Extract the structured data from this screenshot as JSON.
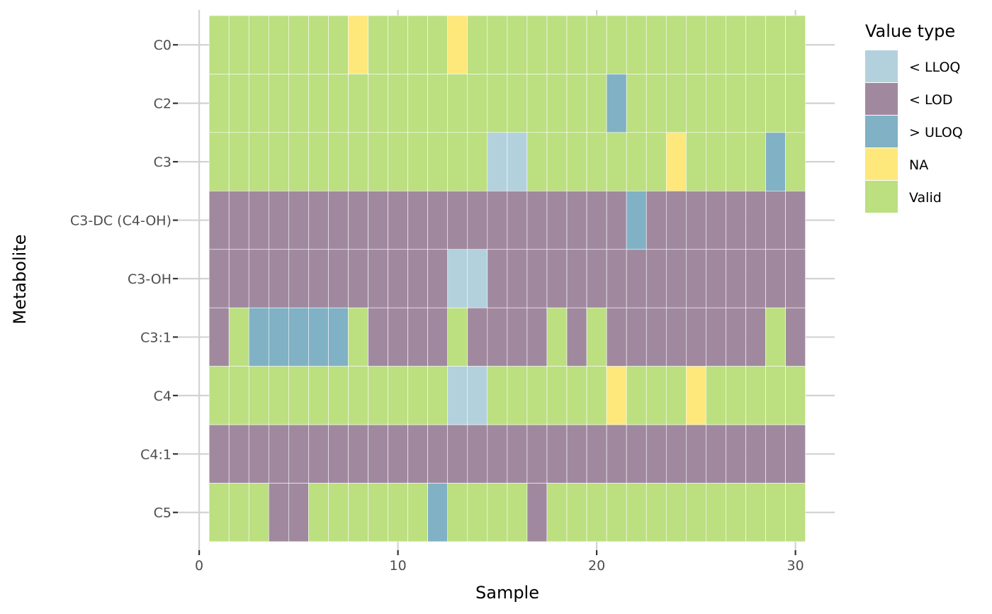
{
  "chart_data": {
    "type": "heatmap",
    "title": "",
    "xlabel": "Sample",
    "ylabel": "Metabolite",
    "xlim": [
      0,
      30.5
    ],
    "x_ticks": [
      "0",
      "10",
      "20",
      "30"
    ],
    "y_categories": [
      "C0",
      "C2",
      "C3",
      "C3-DC (C4-OH)",
      "C3-OH",
      "C3:1",
      "C4",
      "C4:1",
      "C5"
    ],
    "x_samples": [
      1,
      2,
      3,
      4,
      5,
      6,
      7,
      8,
      9,
      10,
      11,
      12,
      13,
      14,
      15,
      16,
      17,
      18,
      19,
      20,
      21,
      22,
      23,
      24,
      25,
      26,
      27,
      28,
      29,
      30
    ],
    "legend": {
      "title": "Value type",
      "placement": "right",
      "entries": [
        {
          "key": "lloq",
          "label": "< LLOQ",
          "color": "#b3d1dc"
        },
        {
          "key": "lod",
          "label": "< LOD",
          "color": "#a0899f"
        },
        {
          "key": "uloq",
          "label": "> ULOQ",
          "color": "#80b1c5"
        },
        {
          "key": "na",
          "label": "NA",
          "color": "#fee77b"
        },
        {
          "key": "valid",
          "label": "Valid",
          "color": "#bcdf80"
        }
      ]
    },
    "grid": true,
    "rows": [
      {
        "metabolite": "C0",
        "values": [
          "Valid",
          "Valid",
          "Valid",
          "Valid",
          "Valid",
          "Valid",
          "Valid",
          "NA",
          "Valid",
          "Valid",
          "Valid",
          "Valid",
          "NA",
          "Valid",
          "Valid",
          "Valid",
          "Valid",
          "Valid",
          "Valid",
          "Valid",
          "Valid",
          "Valid",
          "Valid",
          "Valid",
          "Valid",
          "Valid",
          "Valid",
          "Valid",
          "Valid",
          "Valid"
        ]
      },
      {
        "metabolite": "C2",
        "values": [
          "Valid",
          "Valid",
          "Valid",
          "Valid",
          "Valid",
          "Valid",
          "Valid",
          "Valid",
          "Valid",
          "Valid",
          "Valid",
          "Valid",
          "Valid",
          "Valid",
          "Valid",
          "Valid",
          "Valid",
          "Valid",
          "Valid",
          "Valid",
          "> ULOQ",
          "Valid",
          "Valid",
          "Valid",
          "Valid",
          "Valid",
          "Valid",
          "Valid",
          "Valid",
          "Valid"
        ]
      },
      {
        "metabolite": "C3",
        "values": [
          "Valid",
          "Valid",
          "Valid",
          "Valid",
          "Valid",
          "Valid",
          "Valid",
          "Valid",
          "Valid",
          "Valid",
          "Valid",
          "Valid",
          "Valid",
          "Valid",
          "< LLOQ",
          "< LLOQ",
          "Valid",
          "Valid",
          "Valid",
          "Valid",
          "Valid",
          "Valid",
          "Valid",
          "NA",
          "Valid",
          "Valid",
          "Valid",
          "Valid",
          "> ULOQ",
          "Valid"
        ]
      },
      {
        "metabolite": "C3-DC (C4-OH)",
        "values": [
          "< LOD",
          "< LOD",
          "< LOD",
          "< LOD",
          "< LOD",
          "< LOD",
          "< LOD",
          "< LOD",
          "< LOD",
          "< LOD",
          "< LOD",
          "< LOD",
          "< LOD",
          "< LOD",
          "< LOD",
          "< LOD",
          "< LOD",
          "< LOD",
          "< LOD",
          "< LOD",
          "< LOD",
          "> ULOQ",
          "< LOD",
          "< LOD",
          "< LOD",
          "< LOD",
          "< LOD",
          "< LOD",
          "< LOD",
          "< LOD"
        ]
      },
      {
        "metabolite": "C3-OH",
        "values": [
          "< LOD",
          "< LOD",
          "< LOD",
          "< LOD",
          "< LOD",
          "< LOD",
          "< LOD",
          "< LOD",
          "< LOD",
          "< LOD",
          "< LOD",
          "< LOD",
          "< LLOQ",
          "< LLOQ",
          "< LOD",
          "< LOD",
          "< LOD",
          "< LOD",
          "< LOD",
          "< LOD",
          "< LOD",
          "< LOD",
          "< LOD",
          "< LOD",
          "< LOD",
          "< LOD",
          "< LOD",
          "< LOD",
          "< LOD",
          "< LOD"
        ]
      },
      {
        "metabolite": "C3:1",
        "values": [
          "< LOD",
          "Valid",
          "> ULOQ",
          "> ULOQ",
          "> ULOQ",
          "> ULOQ",
          "> ULOQ",
          "Valid",
          "< LOD",
          "< LOD",
          "< LOD",
          "< LOD",
          "Valid",
          "< LOD",
          "< LOD",
          "< LOD",
          "< LOD",
          "Valid",
          "< LOD",
          "Valid",
          "< LOD",
          "< LOD",
          "< LOD",
          "< LOD",
          "< LOD",
          "< LOD",
          "< LOD",
          "< LOD",
          "Valid",
          "< LOD"
        ]
      },
      {
        "metabolite": "C4",
        "values": [
          "Valid",
          "Valid",
          "Valid",
          "Valid",
          "Valid",
          "Valid",
          "Valid",
          "Valid",
          "Valid",
          "Valid",
          "Valid",
          "Valid",
          "< LLOQ",
          "< LLOQ",
          "Valid",
          "Valid",
          "Valid",
          "Valid",
          "Valid",
          "Valid",
          "NA",
          "Valid",
          "Valid",
          "Valid",
          "NA",
          "Valid",
          "Valid",
          "Valid",
          "Valid",
          "Valid"
        ]
      },
      {
        "metabolite": "C4:1",
        "values": [
          "< LOD",
          "< LOD",
          "< LOD",
          "< LOD",
          "< LOD",
          "< LOD",
          "< LOD",
          "< LOD",
          "< LOD",
          "< LOD",
          "< LOD",
          "< LOD",
          "< LOD",
          "< LOD",
          "< LOD",
          "< LOD",
          "< LOD",
          "< LOD",
          "< LOD",
          "< LOD",
          "< LOD",
          "< LOD",
          "< LOD",
          "< LOD",
          "< LOD",
          "< LOD",
          "< LOD",
          "< LOD",
          "< LOD",
          "< LOD"
        ]
      },
      {
        "metabolite": "C5",
        "values": [
          "Valid",
          "Valid",
          "Valid",
          "< LOD",
          "< LOD",
          "Valid",
          "Valid",
          "Valid",
          "Valid",
          "Valid",
          "Valid",
          "> ULOQ",
          "Valid",
          "Valid",
          "Valid",
          "Valid",
          "< LOD",
          "Valid",
          "Valid",
          "Valid",
          "Valid",
          "Valid",
          "Valid",
          "Valid",
          "Valid",
          "Valid",
          "Valid",
          "Valid",
          "Valid",
          "Valid"
        ]
      }
    ]
  }
}
